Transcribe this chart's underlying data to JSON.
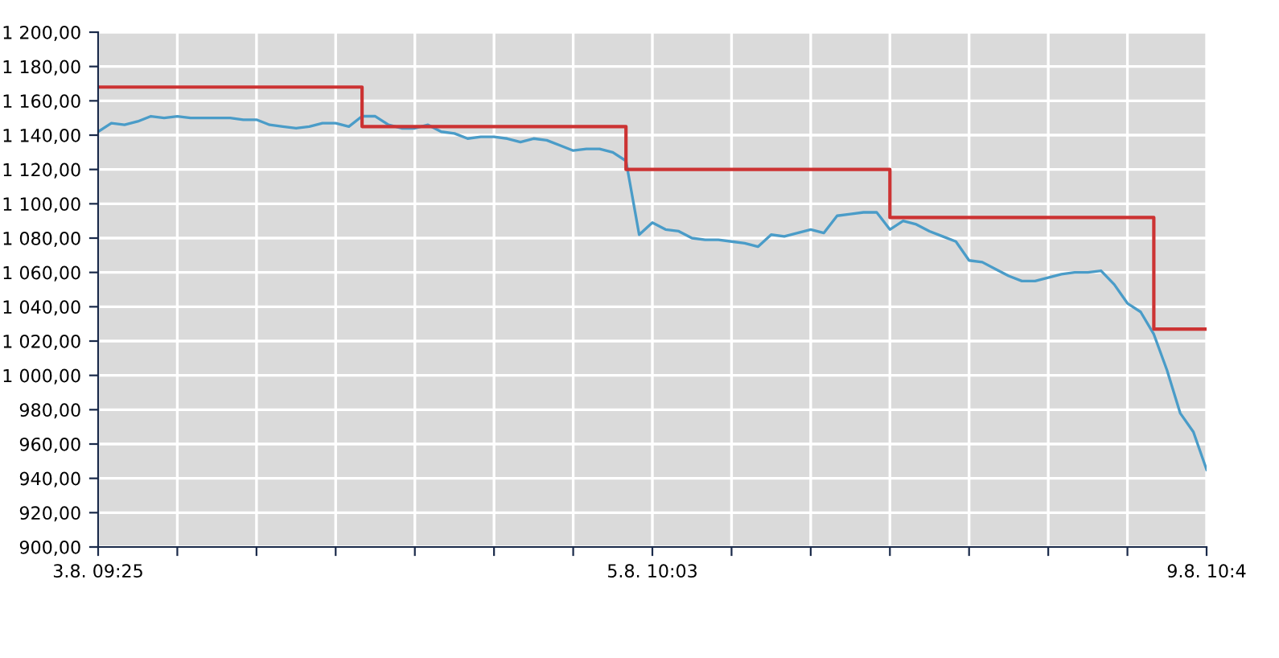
{
  "chart_data": {
    "type": "line",
    "categories": [
      "3.8. 09:25",
      null,
      null,
      null,
      null,
      null,
      null,
      null,
      null,
      null,
      null,
      null,
      null,
      null,
      null,
      null,
      null,
      null,
      null,
      null,
      null,
      null,
      null,
      null,
      null,
      null,
      null,
      null,
      null,
      null,
      null,
      null,
      null,
      null,
      null,
      null,
      null,
      null,
      null,
      null,
      null,
      null,
      "5.8. 10:03",
      null,
      null,
      null,
      null,
      null,
      null,
      null,
      null,
      null,
      null,
      null,
      null,
      null,
      null,
      null,
      null,
      null,
      null,
      null,
      null,
      null,
      null,
      null,
      null,
      null,
      null,
      null,
      null,
      null,
      null,
      null,
      null,
      null,
      null,
      null,
      null,
      null,
      null,
      null,
      null,
      null,
      "9.8. 10:4"
    ],
    "ylim": [
      900,
      1200
    ],
    "yticks": [
      {
        "value": 900,
        "label": "900,00"
      },
      {
        "value": 920,
        "label": "920,00"
      },
      {
        "value": 940,
        "label": "940,00"
      },
      {
        "value": 960,
        "label": "960,00"
      },
      {
        "value": 980,
        "label": "980,00"
      },
      {
        "value": 1000,
        "label": "1 000,00"
      },
      {
        "value": 1020,
        "label": "1 020,00"
      },
      {
        "value": 1040,
        "label": "1 040,00"
      },
      {
        "value": 1060,
        "label": "1 060,00"
      },
      {
        "value": 1080,
        "label": "1 080,00"
      },
      {
        "value": 1100,
        "label": "1 100,00"
      },
      {
        "value": 1120,
        "label": "1 120,00"
      },
      {
        "value": 1140,
        "label": "1 140,00"
      },
      {
        "value": 1160,
        "label": "1 160,00"
      },
      {
        "value": 1180,
        "label": "1 180,00"
      },
      {
        "value": 1200,
        "label": "1 200,00"
      }
    ],
    "grid": true,
    "series": [
      {
        "color": "#4a9cc8",
        "values": [
          1142,
          1147,
          1146,
          1148,
          1151,
          1150,
          1151,
          1150,
          1150,
          1150,
          1150,
          1149,
          1149,
          1146,
          1145,
          1144,
          1145,
          1147,
          1147,
          1145,
          1151,
          1151,
          1146,
          1144,
          1144,
          1146,
          1142,
          1141,
          1138,
          1139,
          1139,
          1138,
          1136,
          1138,
          1137,
          1134,
          1131,
          1132,
          1132,
          1130,
          1125,
          1082,
          1089,
          1085,
          1084,
          1080,
          1079,
          1079,
          1078,
          1077,
          1075,
          1082,
          1081,
          1083,
          1085,
          1083,
          1093,
          1094,
          1095,
          1095,
          1085,
          1090,
          1088,
          1084,
          1081,
          1078,
          1067,
          1066,
          1062,
          1058,
          1055,
          1055,
          1057,
          1059,
          1060,
          1060,
          1061,
          1053,
          1042,
          1037,
          1024,
          1003,
          978,
          967,
          945
        ]
      },
      {
        "type": "step",
        "color": "#cc3333",
        "values": [
          1168,
          1168,
          1168,
          1168,
          1168,
          1168,
          1168,
          1168,
          1168,
          1168,
          1168,
          1168,
          1168,
          1168,
          1168,
          1168,
          1168,
          1168,
          1168,
          1168,
          1145,
          1145,
          1145,
          1145,
          1145,
          1145,
          1145,
          1145,
          1145,
          1145,
          1145,
          1145,
          1145,
          1145,
          1145,
          1145,
          1145,
          1145,
          1145,
          1145,
          1120,
          1120,
          1120,
          1120,
          1120,
          1120,
          1120,
          1120,
          1120,
          1120,
          1120,
          1120,
          1120,
          1120,
          1120,
          1120,
          1120,
          1120,
          1120,
          1120,
          1092,
          1092,
          1092,
          1092,
          1092,
          1092,
          1092,
          1092,
          1092,
          1092,
          1092,
          1092,
          1092,
          1092,
          1092,
          1092,
          1092,
          1092,
          1092,
          1092,
          1027,
          1027,
          1027,
          1027,
          1027
        ]
      }
    ]
  }
}
